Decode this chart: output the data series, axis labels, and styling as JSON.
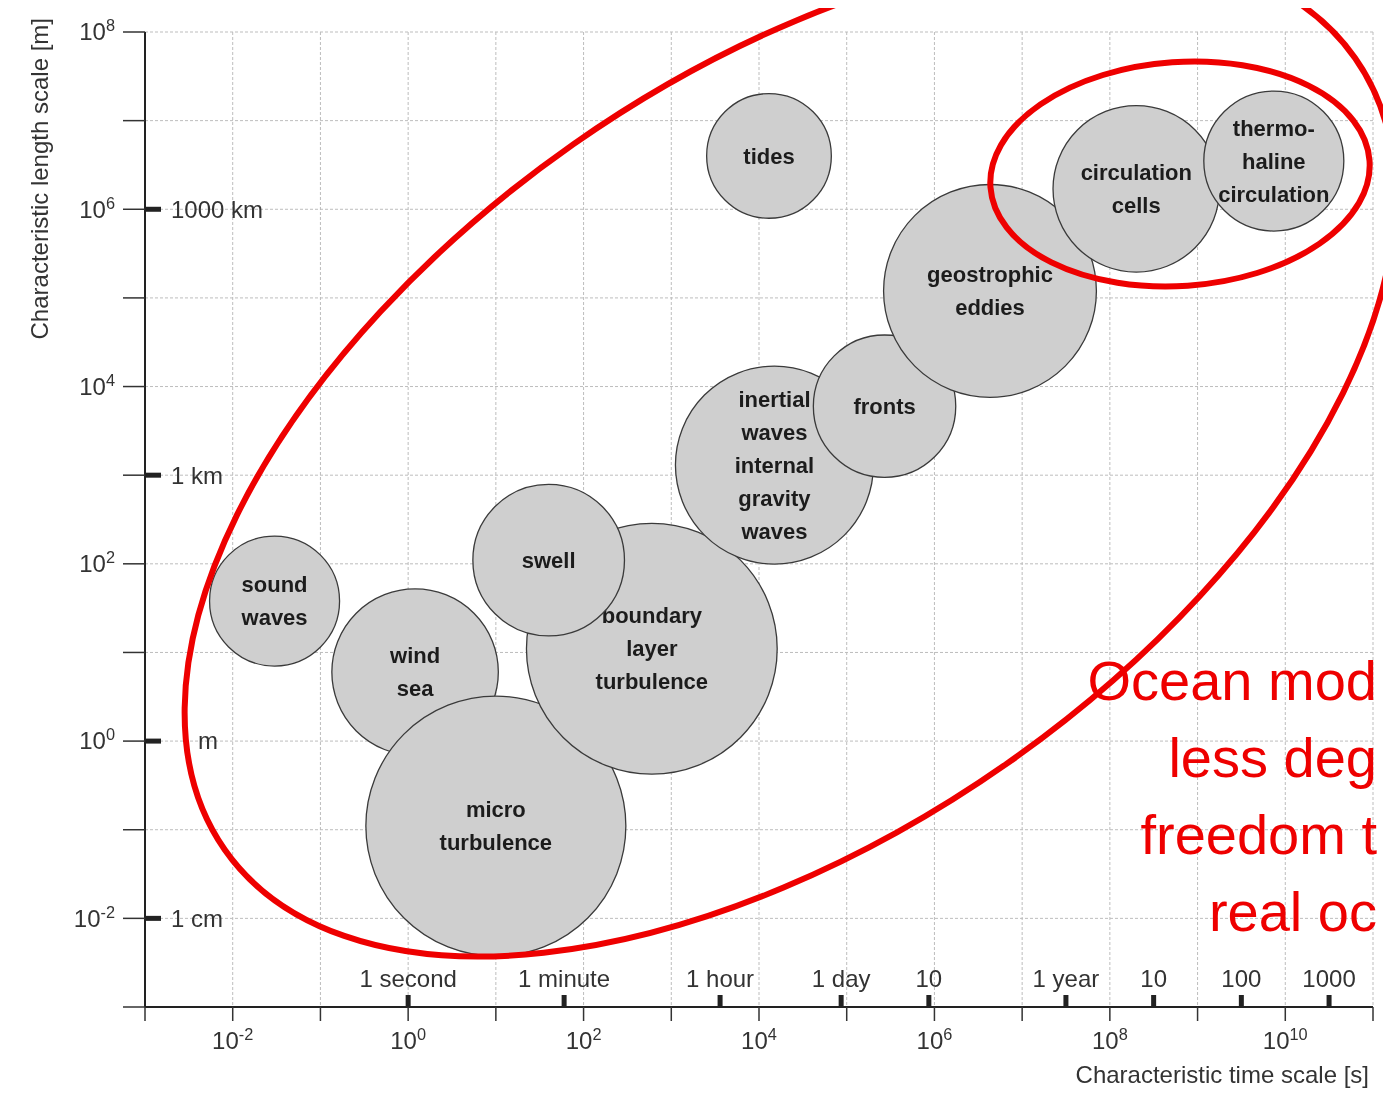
{
  "chart_data": {
    "type": "bubble",
    "xlabel": "Characteristic time scale [s]",
    "ylabel": "Characteristic length scale [m]",
    "log": "xy",
    "grid": true,
    "xlim": [
      0.001,
      100000000000
    ],
    "xticks": [
      {
        "value": 0.001,
        "label": null
      },
      {
        "value": 0.01,
        "label": "10$^{-2}$"
      },
      {
        "value": 0.1,
        "label": null
      },
      {
        "value": 1,
        "label": "10$^{0}$"
      },
      {
        "value": 10,
        "label": null
      },
      {
        "value": 100,
        "label": "10$^{2}$"
      },
      {
        "value": 1000,
        "label": null
      },
      {
        "value": 10000,
        "label": "10$^{4}$"
      },
      {
        "value": 100000,
        "label": null
      },
      {
        "value": 1000000,
        "label": "10$^{6}$"
      },
      {
        "value": 10000000,
        "label": null
      },
      {
        "value": 100000000,
        "label": "10$^{8}$"
      },
      {
        "value": 1000000000,
        "label": null
      },
      {
        "value": 10000000000,
        "label": "10$^{10}$"
      },
      {
        "value": 100000000000,
        "label": null
      }
    ],
    "ylim": [
      0.001,
      100000000
    ],
    "yticks": [
      {
        "value": 0.001,
        "label": null
      },
      {
        "value": 0.01,
        "label": "10$^{-2}$"
      },
      {
        "value": 0.1,
        "label": null
      },
      {
        "value": 1,
        "label": "10$^{0}$"
      },
      {
        "value": 10,
        "label": null
      },
      {
        "value": 100,
        "label": "10$^{2}$"
      },
      {
        "value": 1000,
        "label": null
      },
      {
        "value": 10000,
        "label": "10$^{4}$"
      },
      {
        "value": 100000,
        "label": null
      },
      {
        "value": 1000000,
        "label": "10$^{6}$"
      },
      {
        "value": 10000000,
        "label": null
      },
      {
        "value": 100000000,
        "label": "10$^{8}$"
      }
    ],
    "series": [
      {
        "name": "sound waves",
        "color": "#cfcfcf",
        "x": [
          0.03
        ],
        "values": [
          38
        ],
        "sizes": [
          0.25
        ]
      },
      {
        "name": "wind sea",
        "color": "#cfcfcf",
        "x": [
          1.2
        ],
        "values": [
          6
        ],
        "sizes": [
          0.41
        ]
      },
      {
        "name": "micro turbulence",
        "color": "#cfcfcf",
        "x": [
          10
        ],
        "values": [
          0.11
        ],
        "sizes": [
          1
        ]
      },
      {
        "name": "boundary layer turbulence",
        "color": "#cfcfcf",
        "x": [
          600
        ],
        "values": [
          11
        ],
        "sizes": [
          0.93
        ]
      },
      {
        "name": "swell",
        "color": "#cfcfcf",
        "x": [
          40
        ],
        "values": [
          110
        ],
        "sizes": [
          0.34
        ]
      },
      {
        "name": "tides",
        "color": "#cfcfcf",
        "x": [
          13000
        ],
        "values": [
          4000000
        ],
        "sizes": [
          0.23
        ]
      },
      {
        "name": "inertial waves internal gravity waves",
        "color": "#cfcfcf",
        "x": [
          15000
        ],
        "values": [
          1300
        ],
        "sizes": [
          0.58
        ]
      },
      {
        "name": "fronts",
        "color": "#cfcfcf",
        "x": [
          270000
        ],
        "values": [
          6000
        ],
        "sizes": [
          0.3
        ]
      },
      {
        "name": "geostrophic eddies",
        "color": "#cfcfcf",
        "x": [
          4300000
        ],
        "values": [
          120000
        ],
        "sizes": [
          0.67
        ]
      },
      {
        "name": "circulation cells",
        "color": "#cfcfcf",
        "x": [
          200000000
        ],
        "values": [
          1700000
        ],
        "sizes": [
          0.41
        ]
      },
      {
        "name": "thermo-haline circulation",
        "color": "#cfcfcf",
        "x": [
          7400000000
        ],
        "values": [
          3500000
        ],
        "sizes": [
          0.29
        ]
      }
    ],
    "annotations": [
      "1 second",
      "1 minute",
      "1 hour",
      "1 day",
      "10",
      "1 year",
      "10",
      "100",
      "1000",
      "1000 km",
      "1 km",
      "m",
      "1 cm",
      "Ocean mod",
      "less deg",
      "freedom t",
      "real oc"
    ]
  }
}
